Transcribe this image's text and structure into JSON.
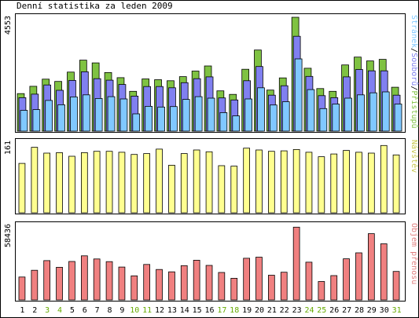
{
  "title": "Denní statistika za leden 2009",
  "colors": {
    "background": "#ffffff",
    "frame": "#000000",
    "hits": "#7fc242",
    "files": "#8080f0",
    "pages": "#80c8ff",
    "visits": "#ffff90",
    "kbytes": "#f08080",
    "weekend_day_label": "#66aa00",
    "weekday_label": "#000000"
  },
  "chart_data": [
    {
      "type": "bar",
      "panel": "hits-files-pages",
      "categories": [
        "1",
        "2",
        "3",
        "4",
        "5",
        "6",
        "7",
        "8",
        "9",
        "10",
        "11",
        "12",
        "13",
        "14",
        "15",
        "16",
        "17",
        "18",
        "19",
        "20",
        "21",
        "22",
        "23",
        "24",
        "25",
        "26",
        "27",
        "28",
        "29",
        "30",
        "31"
      ],
      "weekend_days": [
        "3",
        "4",
        "10",
        "11",
        "17",
        "18",
        "24",
        "25",
        "31"
      ],
      "ymax_label": "4553",
      "ylim": [
        0,
        4553
      ],
      "right_label_parts": [
        "Stránek",
        "/",
        "Souborů",
        "/",
        "Přístupů"
      ],
      "series": [
        {
          "name": "Přístupů",
          "values": [
            1480,
            1770,
            2050,
            1960,
            2330,
            2800,
            2690,
            2310,
            2110,
            1570,
            2060,
            2030,
            1990,
            2150,
            2370,
            2570,
            1590,
            1450,
            2440,
            3200,
            1620,
            2100,
            4490,
            2480,
            1680,
            1570,
            2610,
            2920,
            2770,
            2830,
            1730
          ]
        },
        {
          "name": "Souborů",
          "values": [
            1320,
            1460,
            1820,
            1610,
            2000,
            2340,
            2070,
            2010,
            1840,
            1380,
            1760,
            1760,
            1710,
            1910,
            2070,
            2140,
            1310,
            1230,
            1990,
            2550,
            1420,
            1790,
            3740,
            2160,
            1400,
            1320,
            2140,
            2430,
            2380,
            2380,
            1420
          ]
        },
        {
          "name": "Stránek",
          "values": [
            820,
            850,
            1210,
            1040,
            1350,
            1430,
            1290,
            1360,
            1270,
            680,
            980,
            950,
            970,
            1250,
            1360,
            1300,
            730,
            600,
            1270,
            1710,
            1030,
            1160,
            2850,
            1640,
            890,
            1070,
            1300,
            1430,
            1510,
            1550,
            1070
          ]
        }
      ]
    },
    {
      "type": "bar",
      "panel": "visits",
      "categories": [
        "1",
        "2",
        "3",
        "4",
        "5",
        "6",
        "7",
        "8",
        "9",
        "10",
        "11",
        "12",
        "13",
        "14",
        "15",
        "16",
        "17",
        "18",
        "19",
        "20",
        "21",
        "22",
        "23",
        "24",
        "25",
        "26",
        "27",
        "28",
        "29",
        "30",
        "31"
      ],
      "ymax_label": "161",
      "ylim": [
        0,
        161
      ],
      "right_label": "Návštěv",
      "series": [
        {
          "name": "Návštěv",
          "values": [
            110,
            146,
            133,
            134,
            126,
            134,
            137,
            137,
            135,
            130,
            132,
            142,
            106,
            132,
            140,
            136,
            105,
            104,
            144,
            140,
            137,
            138,
            141,
            135,
            125,
            131,
            139,
            135,
            133,
            150,
            129
          ]
        }
      ]
    },
    {
      "type": "bar",
      "panel": "kbytes",
      "categories": [
        "1",
        "2",
        "3",
        "4",
        "5",
        "6",
        "7",
        "8",
        "9",
        "10",
        "11",
        "12",
        "13",
        "14",
        "15",
        "16",
        "17",
        "18",
        "19",
        "20",
        "21",
        "22",
        "23",
        "24",
        "25",
        "26",
        "27",
        "28",
        "29",
        "30",
        "31"
      ],
      "ymax_label": "58436",
      "ylim": [
        0,
        58436
      ],
      "right_label": "Objem přenosu",
      "series": [
        {
          "name": "Objem přenosu",
          "values": [
            17800,
            23000,
            30500,
            25300,
            29800,
            34200,
            31800,
            29700,
            25500,
            18700,
            27500,
            23600,
            21800,
            26600,
            30800,
            26800,
            21300,
            16800,
            32300,
            33200,
            19200,
            21500,
            56400,
            29300,
            14300,
            18900,
            31900,
            36500,
            51400,
            43500,
            22100
          ]
        }
      ]
    }
  ]
}
